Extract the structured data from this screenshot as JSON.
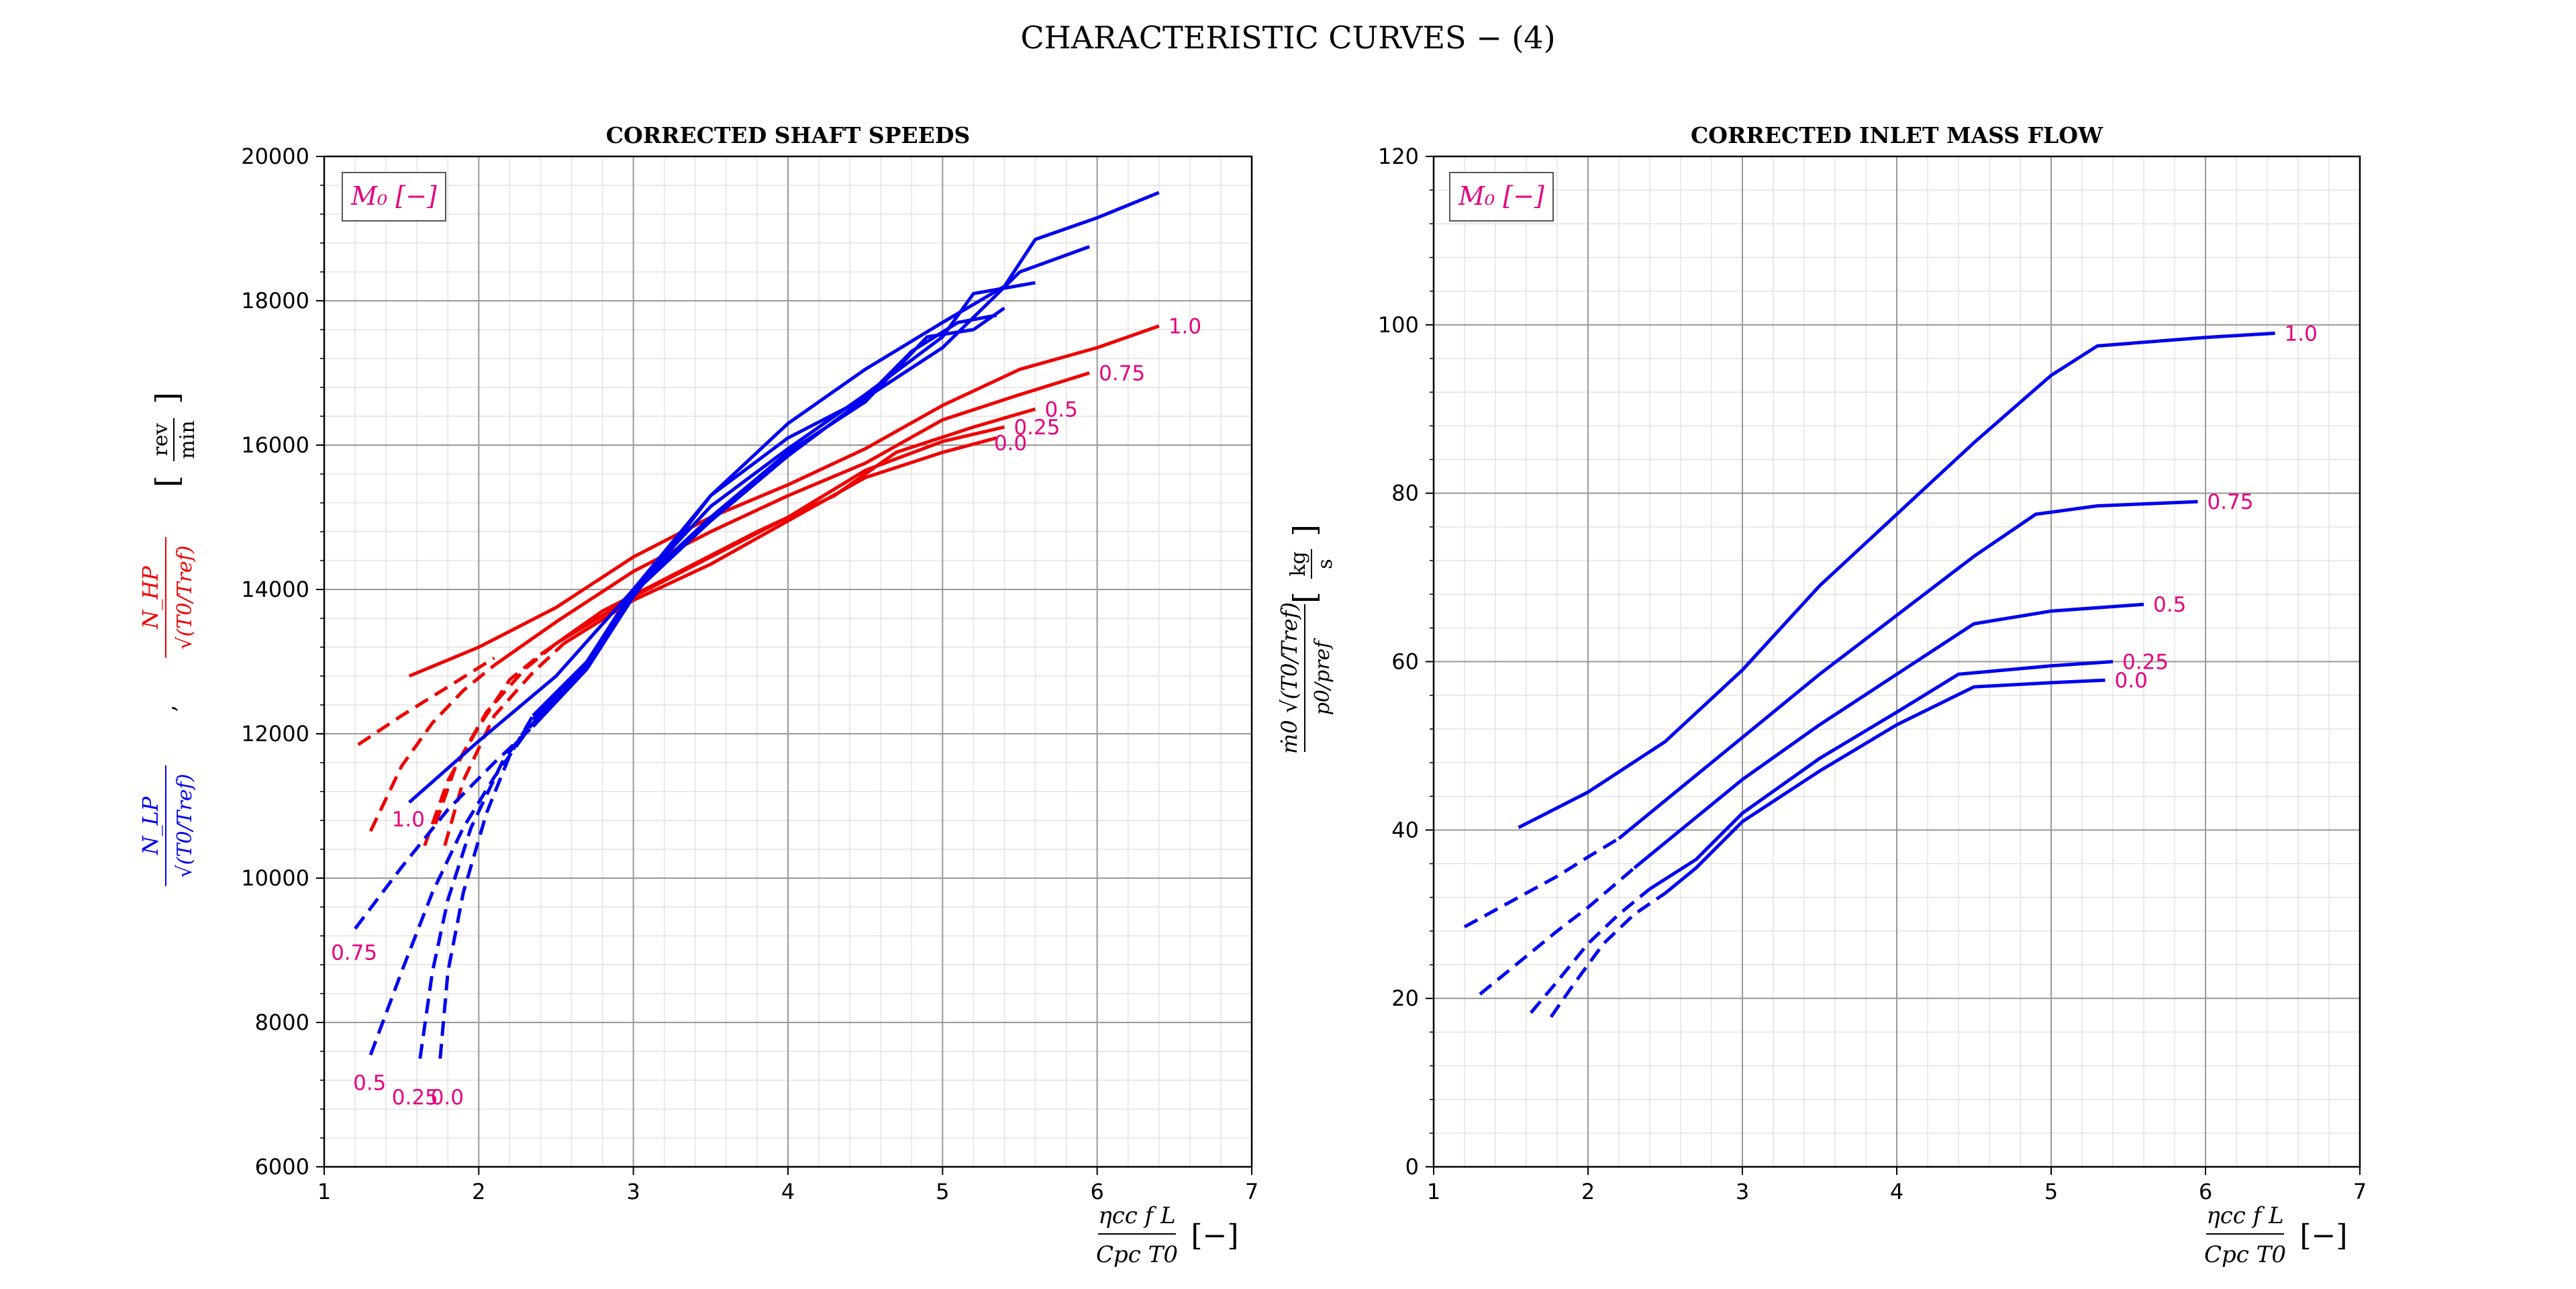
{
  "figure": {
    "title": "CHARACTERISTIC CURVES  − (4)"
  },
  "colors": {
    "lp": "#0000ee",
    "hp": "#ee0000",
    "label": "#e6007e",
    "major_grid": "#999999",
    "minor_grid": "#e3e3e3"
  },
  "chart_data": [
    {
      "id": "left",
      "type": "line",
      "title": "CORRECTED SHAFT SPEEDS",
      "legend_title": "M₀ [−]",
      "xlabel": {
        "num": "ηcc f L",
        "den": "Cpc T0",
        "unit": "[−]"
      },
      "ylabel": {
        "hp_num": "N_HP",
        "hp_den": "√(T0/Tref)",
        "sep": ",",
        "lp_num": "N_LP",
        "lp_den": "√(T0/Tref)",
        "unit_num": "rev",
        "unit_den": "min"
      },
      "xlim": [
        1,
        7
      ],
      "ylim": [
        6000,
        20000
      ],
      "xticks": [
        "1",
        "2",
        "3",
        "4",
        "5",
        "6",
        "7"
      ],
      "yticks": [
        "6000",
        "8000",
        "10000",
        "12000",
        "14000",
        "16000",
        "18000",
        "20000"
      ],
      "grid": true,
      "series": [
        {
          "group": "hp",
          "label": "1.0",
          "label_pos": "end",
          "dashed": [
            [
              1.22,
              11850
            ],
            [
              1.5,
              12250
            ],
            [
              1.8,
              12650
            ],
            [
              2.1,
              13050
            ]
          ],
          "solid": [
            [
              1.55,
              12800
            ],
            [
              2.0,
              13200
            ],
            [
              2.5,
              13750
            ],
            [
              3.0,
              14450
            ],
            [
              3.5,
              15000
            ],
            [
              4.0,
              15450
            ],
            [
              4.5,
              15950
            ],
            [
              5.0,
              16550
            ],
            [
              5.5,
              17050
            ],
            [
              6.0,
              17350
            ],
            [
              6.4,
              17650
            ]
          ]
        },
        {
          "group": "hp",
          "label": "0.75",
          "label_pos": "end",
          "dashed": [
            [
              1.3,
              10650
            ],
            [
              1.5,
              11550
            ],
            [
              1.7,
              12150
            ],
            [
              1.9,
              12600
            ],
            [
              2.1,
              12950
            ]
          ],
          "solid": [
            [
              2.1,
              12950
            ],
            [
              2.5,
              13550
            ],
            [
              3.0,
              14250
            ],
            [
              3.5,
              14800
            ],
            [
              4.0,
              15300
            ],
            [
              4.5,
              15750
            ],
            [
              5.0,
              16350
            ],
            [
              5.5,
              16700
            ],
            [
              5.95,
              17000
            ]
          ]
        },
        {
          "group": "hp",
          "label": "0.5",
          "label_pos": "end",
          "dashed": [
            [
              1.65,
              10450
            ],
            [
              1.8,
              11350
            ],
            [
              2.0,
              12100
            ],
            [
              2.2,
              12750
            ],
            [
              2.4,
              13100
            ]
          ],
          "solid": [
            [
              2.4,
              13100
            ],
            [
              2.8,
              13700
            ],
            [
              3.3,
              14250
            ],
            [
              3.8,
              14800
            ],
            [
              4.3,
              15300
            ],
            [
              4.7,
              15900
            ],
            [
              5.2,
              16250
            ],
            [
              5.6,
              16500
            ]
          ]
        },
        {
          "group": "hp",
          "label": "0.25",
          "label_pos": "end",
          "dashed": [
            [
              1.72,
              10750
            ],
            [
              1.85,
              11550
            ],
            [
              2.05,
              12300
            ],
            [
              2.3,
              12900
            ],
            [
              2.5,
              13250
            ]
          ],
          "solid": [
            [
              2.5,
              13250
            ],
            [
              3.0,
              13900
            ],
            [
              3.5,
              14450
            ],
            [
              4.0,
              15000
            ],
            [
              4.5,
              15650
            ],
            [
              5.0,
              16050
            ],
            [
              5.4,
              16250
            ]
          ]
        },
        {
          "group": "hp",
          "label": "0.0",
          "label_pos": "end",
          "dashed": [
            [
              1.78,
              10450
            ],
            [
              1.9,
              11350
            ],
            [
              2.1,
              12250
            ],
            [
              2.35,
              12850
            ],
            [
              2.55,
              13250
            ]
          ],
          "solid": [
            [
              2.55,
              13250
            ],
            [
              3.0,
              13850
            ],
            [
              3.5,
              14350
            ],
            [
              4.0,
              14950
            ],
            [
              4.5,
              15550
            ],
            [
              5.0,
              15900
            ],
            [
              5.35,
              16100
            ]
          ]
        },
        {
          "group": "lp",
          "label": "1.0",
          "label_pos": "start",
          "dashed": [],
          "solid": [
            [
              1.55,
              11050
            ],
            [
              2.0,
              11900
            ],
            [
              2.5,
              12800
            ],
            [
              3.0,
              14000
            ],
            [
              3.5,
              15300
            ],
            [
              4.0,
              16300
            ],
            [
              4.5,
              17050
            ],
            [
              5.0,
              17700
            ],
            [
              5.4,
              18200
            ],
            [
              5.6,
              18850
            ],
            [
              6.0,
              19150
            ],
            [
              6.4,
              19500
            ]
          ]
        },
        {
          "group": "lp",
          "label": "0.75",
          "label_pos": "start",
          "dashed": [
            [
              1.2,
              9300
            ],
            [
              1.5,
              10150
            ],
            [
              1.8,
              10950
            ],
            [
              2.1,
              11600
            ],
            [
              2.35,
              12100
            ]
          ],
          "solid": [
            [
              2.35,
              12100
            ],
            [
              2.7,
              12900
            ],
            [
              3.0,
              13900
            ],
            [
              3.5,
              15300
            ],
            [
              4.0,
              16100
            ],
            [
              4.5,
              16650
            ],
            [
              5.0,
              17350
            ],
            [
              5.5,
              18400
            ],
            [
              5.95,
              18750
            ]
          ]
        },
        {
          "group": "lp",
          "label": "0.5",
          "label_pos": "start",
          "dashed": [
            [
              1.3,
              7550
            ],
            [
              1.5,
              8700
            ],
            [
              1.7,
              9800
            ],
            [
              1.9,
              10700
            ],
            [
              2.1,
              11400
            ],
            [
              2.35,
              12150
            ]
          ],
          "solid": [
            [
              2.35,
              12150
            ],
            [
              2.7,
              12950
            ],
            [
              3.0,
              14000
            ],
            [
              3.5,
              15150
            ],
            [
              4.0,
              15950
            ],
            [
              4.5,
              16700
            ],
            [
              5.0,
              17500
            ],
            [
              5.2,
              18100
            ],
            [
              5.6,
              18250
            ]
          ]
        },
        {
          "group": "lp",
          "label": "0.25",
          "label_pos": "start",
          "dashed": [
            [
              1.62,
              7500
            ],
            [
              1.7,
              8700
            ],
            [
              1.8,
              9700
            ],
            [
              1.95,
              10700
            ],
            [
              2.15,
              11600
            ],
            [
              2.35,
              12200
            ]
          ],
          "solid": [
            [
              2.35,
              12200
            ],
            [
              2.7,
              13000
            ],
            [
              3.0,
              14000
            ],
            [
              3.5,
              15000
            ],
            [
              4.0,
              15900
            ],
            [
              4.5,
              16600
            ],
            [
              4.9,
              17500
            ],
            [
              5.2,
              17600
            ],
            [
              5.4,
              17900
            ]
          ]
        },
        {
          "group": "lp",
          "label": "0.0",
          "label_pos": "start",
          "dashed": [
            [
              1.75,
              7500
            ],
            [
              1.8,
              8700
            ],
            [
              1.9,
              9800
            ],
            [
              2.05,
              10900
            ],
            [
              2.2,
              11700
            ],
            [
              2.35,
              12250
            ]
          ],
          "solid": [
            [
              2.35,
              12250
            ],
            [
              2.7,
              13000
            ],
            [
              3.0,
              13950
            ],
            [
              3.5,
              14950
            ],
            [
              4.0,
              15850
            ],
            [
              4.5,
              16650
            ],
            [
              4.8,
              17300
            ],
            [
              5.1,
              17700
            ],
            [
              5.35,
              17800
            ]
          ]
        }
      ]
    },
    {
      "id": "right",
      "type": "line",
      "title": "CORRECTED INLET MASS FLOW",
      "legend_title": "M₀ [−]",
      "xlabel": {
        "num": "ηcc f L",
        "den": "Cpc T0",
        "unit": "[−]"
      },
      "ylabel": {
        "num": "ṁ0 √(T0/Tref)",
        "den": "p0/pref",
        "unit_num": "kg",
        "unit_den": "s"
      },
      "xlim": [
        1,
        7
      ],
      "ylim": [
        0,
        120
      ],
      "xticks": [
        "1",
        "2",
        "3",
        "4",
        "5",
        "6",
        "7"
      ],
      "yticks": [
        "0",
        "20",
        "40",
        "60",
        "80",
        "100",
        "120"
      ],
      "grid": true,
      "series": [
        {
          "group": "lp",
          "label": "1.0",
          "label_pos": "end",
          "dashed": [],
          "solid": [
            [
              1.55,
              40.3
            ],
            [
              2.0,
              44.5
            ],
            [
              2.5,
              50.5
            ],
            [
              3.0,
              59.0
            ],
            [
              3.5,
              69.0
            ],
            [
              4.0,
              77.5
            ],
            [
              4.5,
              86.0
            ],
            [
              5.0,
              94.0
            ],
            [
              5.3,
              97.5
            ],
            [
              6.0,
              98.5
            ],
            [
              6.45,
              99.0
            ]
          ]
        },
        {
          "group": "lp",
          "label": "0.75",
          "label_pos": "end",
          "dashed": [
            [
              1.2,
              28.5
            ],
            [
              1.5,
              31.5
            ],
            [
              1.8,
              34.5
            ],
            [
              2.0,
              36.8
            ],
            [
              2.2,
              39.0
            ]
          ],
          "solid": [
            [
              2.2,
              39.0
            ],
            [
              2.5,
              43.5
            ],
            [
              3.0,
              51.0
            ],
            [
              3.5,
              58.5
            ],
            [
              4.0,
              65.5
            ],
            [
              4.5,
              72.5
            ],
            [
              4.9,
              77.5
            ],
            [
              5.3,
              78.5
            ],
            [
              5.95,
              79.0
            ]
          ]
        },
        {
          "group": "lp",
          "label": "0.5",
          "label_pos": "end",
          "dashed": [
            [
              1.3,
              20.5
            ],
            [
              1.5,
              23.5
            ],
            [
              1.8,
              28.0
            ],
            [
              2.0,
              30.8
            ],
            [
              2.3,
              35.5
            ]
          ],
          "solid": [
            [
              2.3,
              35.5
            ],
            [
              2.7,
              41.5
            ],
            [
              3.0,
              46.0
            ],
            [
              3.5,
              52.5
            ],
            [
              4.0,
              58.5
            ],
            [
              4.5,
              64.5
            ],
            [
              5.0,
              66.0
            ],
            [
              5.6,
              66.8
            ]
          ]
        },
        {
          "group": "lp",
          "label": "0.25",
          "label_pos": "end",
          "dashed": [
            [
              1.63,
              18.3
            ],
            [
              1.8,
              22.0
            ],
            [
              2.0,
              26.5
            ],
            [
              2.2,
              30.0
            ],
            [
              2.4,
              33.0
            ]
          ],
          "solid": [
            [
              2.4,
              33.0
            ],
            [
              2.7,
              36.5
            ],
            [
              3.0,
              42.0
            ],
            [
              3.5,
              48.5
            ],
            [
              4.0,
              54.0
            ],
            [
              4.4,
              58.5
            ],
            [
              5.0,
              59.5
            ],
            [
              5.4,
              60.0
            ]
          ]
        },
        {
          "group": "lp",
          "label": "0.0",
          "label_pos": "end",
          "dashed": [
            [
              1.76,
              17.8
            ],
            [
              1.9,
              21.5
            ],
            [
              2.1,
              26.5
            ],
            [
              2.3,
              30.0
            ],
            [
              2.5,
              32.5
            ]
          ],
          "solid": [
            [
              2.5,
              32.5
            ],
            [
              2.7,
              35.5
            ],
            [
              3.0,
              41.0
            ],
            [
              3.5,
              47.0
            ],
            [
              4.0,
              52.5
            ],
            [
              4.5,
              57.0
            ],
            [
              5.0,
              57.5
            ],
            [
              5.35,
              57.8
            ]
          ]
        }
      ]
    }
  ]
}
